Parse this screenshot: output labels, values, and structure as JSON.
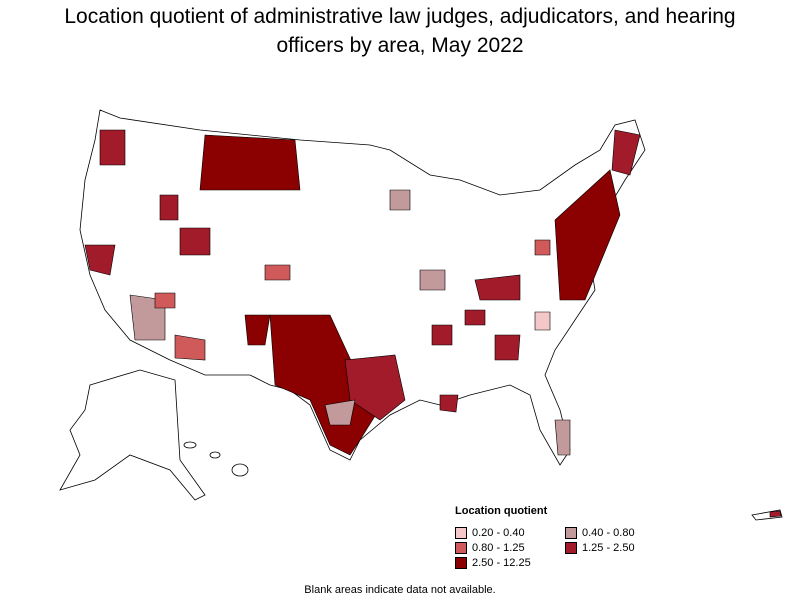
{
  "title": "Location quotient of administrative law judges, adjudicators, and hearing officers by area, May 2022",
  "legend": {
    "title": "Location quotient",
    "items": [
      {
        "label": "0.20 - 0.40",
        "color": "#f4c7c8"
      },
      {
        "label": "0.40 - 0.80",
        "color": "#c39a9c"
      },
      {
        "label": "0.80 - 1.25",
        "color": "#d05a5a"
      },
      {
        "label": "1.25 - 2.50",
        "color": "#a11b2a"
      },
      {
        "label": "2.50 - 12.25",
        "color": "#8b0000"
      }
    ]
  },
  "note": "Blank areas indicate data not available."
}
